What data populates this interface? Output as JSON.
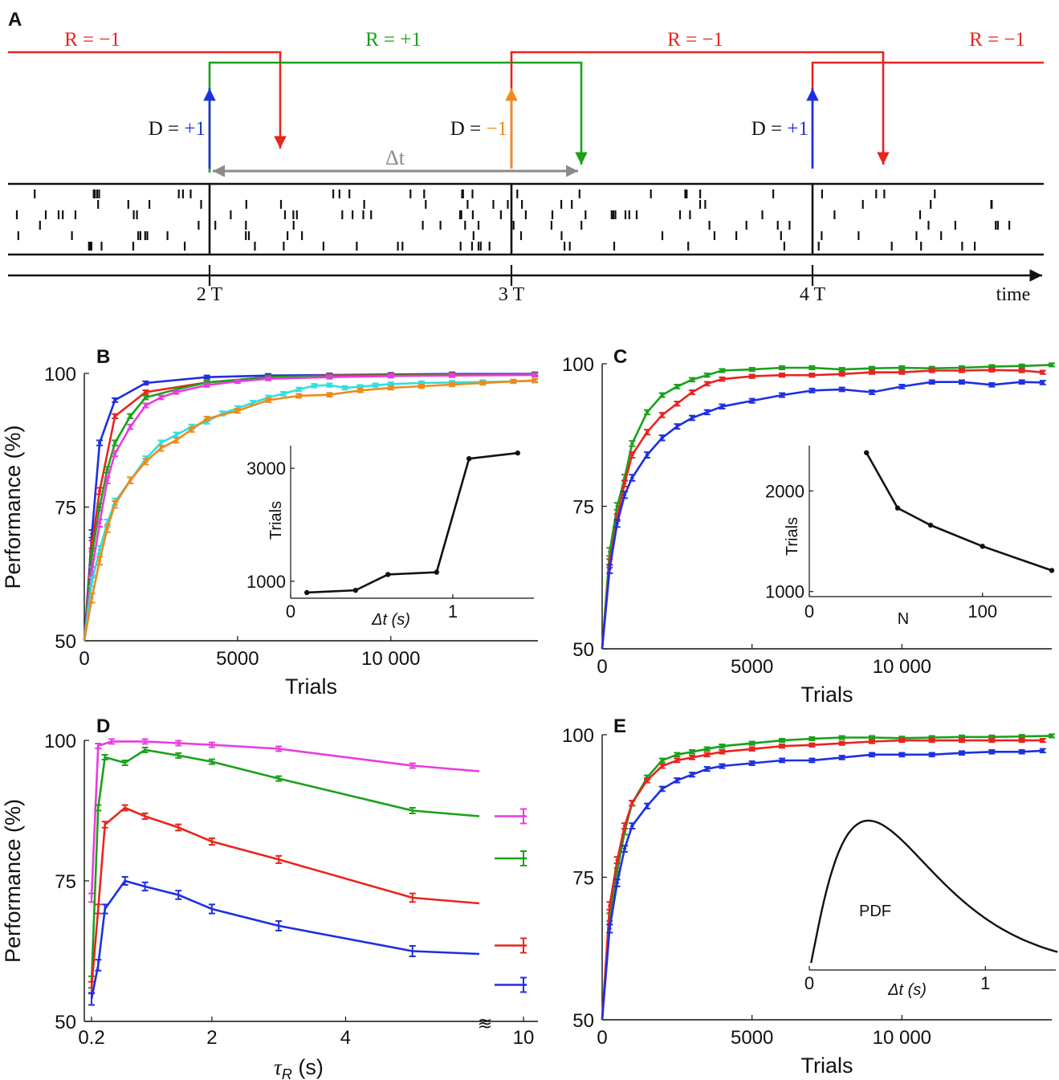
{
  "colors": {
    "red": "#e8251e",
    "green": "#1aa11a",
    "blue": "#1f2fe0",
    "orange": "#f08a1c",
    "magenta": "#e83ce0",
    "cyan": "#2ee0e0",
    "black": "#111111",
    "gray": "#8a8a8a"
  },
  "panelA": {
    "label": "A",
    "time_label": "time",
    "ticks": [
      "2 T",
      "3 T",
      "4 T"
    ],
    "delta_t": "Δt",
    "reward_labels": [
      {
        "text": "R = −1",
        "color": "red"
      },
      {
        "text": "R = +1",
        "color": "green"
      },
      {
        "text": "R = −1",
        "color": "red"
      },
      {
        "text": "R = −1",
        "color": "red"
      }
    ],
    "decisions": [
      {
        "prefix": "D = ",
        "value": "+1",
        "color": "blue"
      },
      {
        "prefix": "D = ",
        "value": "−1",
        "color": "orange"
      },
      {
        "prefix": "D = ",
        "value": "+1",
        "color": "blue"
      }
    ]
  },
  "chart_data": [
    {
      "panel": "B",
      "type": "line",
      "xlabel": "Trials",
      "ylabel": "Performance (%)",
      "xlim": [
        0,
        14800
      ],
      "ylim": [
        50,
        100
      ],
      "xticks": [
        "0",
        "5000",
        "10 000"
      ],
      "yticks": [
        "50",
        "75",
        "100"
      ],
      "series": [
        {
          "color": "blue",
          "x": [
            0,
            250,
            500,
            1000,
            2000,
            4000,
            6000,
            8000,
            10000,
            12000,
            14700
          ],
          "y": [
            50,
            70,
            87,
            95,
            98.2,
            99.3,
            99.6,
            99.7,
            99.8,
            99.9,
            99.9
          ]
        },
        {
          "color": "red",
          "x": [
            0,
            250,
            500,
            1000,
            2000,
            4000,
            6000,
            8000,
            10000,
            12000,
            14700
          ],
          "y": [
            50,
            68,
            78,
            92,
            96.5,
            98.3,
            99.3,
            99.6,
            99.7,
            99.8,
            99.8
          ]
        },
        {
          "color": "green",
          "x": [
            0,
            250,
            500,
            750,
            1000,
            1500,
            2000,
            3000,
            4000,
            6000,
            8000,
            10000,
            12000,
            14700
          ],
          "y": [
            50,
            66,
            75,
            82,
            87,
            92,
            95.5,
            97,
            98.3,
            99.3,
            99.5,
            99.6,
            99.7,
            99.8
          ]
        },
        {
          "color": "magenta",
          "x": [
            0,
            250,
            500,
            750,
            1000,
            1500,
            2000,
            2500,
            3000,
            4000,
            5000,
            6000,
            8000,
            10000,
            12000,
            14700
          ],
          "y": [
            50,
            63,
            72,
            80,
            85,
            90,
            94,
            95.5,
            96.5,
            97.8,
            98.5,
            99,
            99.3,
            99.5,
            99.6,
            99.7
          ]
        },
        {
          "color": "cyan",
          "x": [
            0,
            250,
            500,
            750,
            1000,
            1500,
            2000,
            2500,
            3000,
            3500,
            4000,
            4500,
            5000,
            5500,
            6000,
            6500,
            7000,
            7500,
            8000,
            8500,
            9000,
            9500,
            10000,
            11000,
            12000,
            13000,
            14000,
            14700
          ],
          "y": [
            50,
            61,
            67,
            72,
            76,
            80,
            84,
            87,
            88.5,
            90,
            91,
            92.5,
            93.5,
            94.5,
            95.5,
            96.2,
            97,
            97.7,
            97.8,
            97.3,
            97.5,
            97.8,
            98,
            98.2,
            98.3,
            98.4,
            98.5,
            98.6
          ]
        },
        {
          "color": "orange",
          "x": [
            0,
            250,
            500,
            750,
            1000,
            1500,
            2000,
            2500,
            3000,
            3500,
            4000,
            5000,
            6000,
            7000,
            8000,
            9000,
            10000,
            11000,
            12000,
            13000,
            14000,
            14700
          ],
          "y": [
            50,
            58,
            65,
            71,
            75.5,
            80,
            83.5,
            86,
            87.5,
            89.5,
            91.5,
            93,
            95,
            95.8,
            96,
            96.8,
            97.3,
            97.6,
            97.9,
            98.2,
            98.5,
            98.7
          ]
        }
      ],
      "inset": {
        "type": "line",
        "xlabel": "Δt (s)",
        "ylabel": "Trials",
        "xlim": [
          0,
          1.5
        ],
        "ylim": [
          700,
          3400
        ],
        "xticks": [
          "0",
          "1"
        ],
        "yticks": [
          "1000",
          "3000"
        ],
        "x": [
          0.1,
          0.4,
          0.6,
          0.9,
          1.1,
          1.4
        ],
        "y": [
          800,
          840,
          1120,
          1160,
          3170,
          3270
        ]
      }
    },
    {
      "panel": "C",
      "type": "line",
      "xlabel": "Trials",
      "xlim": [
        0,
        15000
      ],
      "ylim": [
        50,
        100
      ],
      "xticks": [
        "0",
        "5000",
        "10 000"
      ],
      "yticks": [
        "50",
        "75",
        "100"
      ],
      "series": [
        {
          "color": "green",
          "x": [
            0,
            250,
            500,
            750,
            1000,
            1500,
            2000,
            2500,
            3000,
            3500,
            4000,
            5000,
            6000,
            7000,
            8000,
            9000,
            10000,
            11000,
            12000,
            13000,
            14000,
            15000
          ],
          "y": [
            50,
            67,
            75,
            80,
            86,
            91.5,
            94.5,
            96,
            97.2,
            98,
            98.8,
            99,
            99.3,
            99.3,
            99,
            99.2,
            99.3,
            99.2,
            99.3,
            99.5,
            99.6,
            99.8
          ]
        },
        {
          "color": "red",
          "x": [
            0,
            250,
            500,
            750,
            1000,
            1500,
            2000,
            2500,
            3000,
            3500,
            4000,
            5000,
            6000,
            7000,
            8000,
            9000,
            10000,
            11000,
            12000,
            13000,
            14000,
            14700
          ],
          "y": [
            50,
            65,
            73,
            79,
            84,
            88,
            91,
            93,
            95,
            96.5,
            97.3,
            97.8,
            98,
            98,
            98.2,
            98.5,
            98.5,
            98.8,
            98.8,
            98.9,
            98.8,
            98.5
          ]
        },
        {
          "color": "blue",
          "x": [
            0,
            250,
            500,
            750,
            1000,
            1500,
            2000,
            2500,
            3000,
            3500,
            4000,
            5000,
            6000,
            7000,
            8000,
            9000,
            10000,
            11000,
            12000,
            13000,
            14000,
            14700
          ],
          "y": [
            50,
            64,
            72,
            77,
            80,
            84,
            87,
            89,
            90.5,
            91.5,
            92.5,
            93.5,
            94.5,
            95.3,
            95.5,
            95,
            96,
            96.8,
            96.8,
            96.3,
            96.8,
            96.7
          ]
        }
      ],
      "inset": {
        "type": "line",
        "xlabel": "N",
        "ylabel": "Trials",
        "xlim": [
          0,
          140
        ],
        "ylim": [
          950,
          2450
        ],
        "xticks": [
          "0",
          "100"
        ],
        "yticks": [
          "1000",
          "2000"
        ],
        "x": [
          33,
          51,
          70,
          100,
          140
        ],
        "y": [
          2380,
          1830,
          1660,
          1450,
          1210
        ]
      }
    },
    {
      "panel": "D",
      "type": "line",
      "xlabel": "τR (s)",
      "ylabel": "Performance (%)",
      "ylim": [
        50,
        100
      ],
      "xticks": [
        "0.2",
        "2",
        "4",
        "10"
      ],
      "yticks": [
        "50",
        "75",
        "100"
      ],
      "series": [
        {
          "color": "magenta",
          "x": [
            0.2,
            0.3,
            0.5,
            1.0,
            1.5,
            2.0,
            3.0,
            5.0,
            6.0
          ],
          "y": [
            72,
            99,
            99.8,
            99.8,
            99.5,
            99.2,
            98.5,
            95.5,
            94.5
          ],
          "x10": 86.5
        },
        {
          "color": "green",
          "x": [
            0.2,
            0.3,
            0.4,
            0.7,
            1.0,
            1.5,
            2.0,
            3.0,
            5.0,
            6.0
          ],
          "y": [
            57,
            88,
            97,
            96,
            98.3,
            97.3,
            96.2,
            93.2,
            87.5,
            86.5
          ],
          "x10": 79
        },
        {
          "color": "red",
          "x": [
            0.2,
            0.3,
            0.4,
            0.7,
            1.0,
            1.5,
            2.0,
            3.0,
            5.0,
            6.0
          ],
          "y": [
            56,
            70,
            85,
            88,
            86.5,
            84.5,
            82,
            78.8,
            72,
            71
          ],
          "x10": 63.5
        },
        {
          "color": "blue",
          "x": [
            0.2,
            0.3,
            0.4,
            0.7,
            1.0,
            1.5,
            2.0,
            3.0,
            5.0,
            6.0
          ],
          "y": [
            54,
            60,
            70,
            75,
            74,
            72.5,
            70,
            67,
            62.5,
            62
          ],
          "x10": 56.5
        }
      ]
    },
    {
      "panel": "E",
      "type": "line",
      "xlabel": "Trials",
      "xlim": [
        0,
        15000
      ],
      "ylim": [
        50,
        100
      ],
      "xticks": [
        "0",
        "5000",
        "10 000"
      ],
      "yticks": [
        "50",
        "75",
        "100"
      ],
      "series": [
        {
          "color": "green",
          "x": [
            0,
            250,
            500,
            750,
            1000,
            1500,
            2000,
            2500,
            3000,
            3500,
            4000,
            5000,
            6000,
            7000,
            8000,
            9000,
            10000,
            11000,
            12000,
            13000,
            14000,
            15000
          ],
          "y": [
            50,
            68,
            76,
            83,
            88,
            92.5,
            95.5,
            96.5,
            97,
            97.5,
            98,
            98.5,
            99,
            99.3,
            99.5,
            99.5,
            99.4,
            99.5,
            99.6,
            99.6,
            99.7,
            99.8
          ]
        },
        {
          "color": "red",
          "x": [
            0,
            250,
            500,
            750,
            1000,
            1500,
            2000,
            2500,
            3000,
            3500,
            4000,
            5000,
            6000,
            7000,
            8000,
            9000,
            10000,
            11000,
            12000,
            13000,
            14000,
            14700
          ],
          "y": [
            50,
            70,
            78,
            84,
            88,
            92,
            94.5,
            95.5,
            96,
            96.5,
            97,
            97.5,
            98,
            98.2,
            98.5,
            98.8,
            99,
            99,
            99,
            99,
            99,
            99
          ]
        },
        {
          "color": "blue",
          "x": [
            0,
            250,
            500,
            750,
            1000,
            1500,
            2000,
            2500,
            3000,
            3500,
            4000,
            5000,
            6000,
            7000,
            8000,
            9000,
            10000,
            11000,
            12000,
            13000,
            14000,
            14700
          ],
          "y": [
            50,
            66,
            74,
            80,
            84,
            87.5,
            90.5,
            92,
            93,
            94,
            94.5,
            95,
            95.5,
            95.5,
            96,
            96.5,
            96.5,
            96.5,
            96.8,
            97,
            97,
            97.2
          ]
        }
      ],
      "inset": {
        "type": "line",
        "label": "PDF",
        "xlabel": "Δt (s)",
        "xlim": [
          0,
          1.4
        ],
        "xticks": [
          "0",
          "1"
        ]
      }
    }
  ]
}
